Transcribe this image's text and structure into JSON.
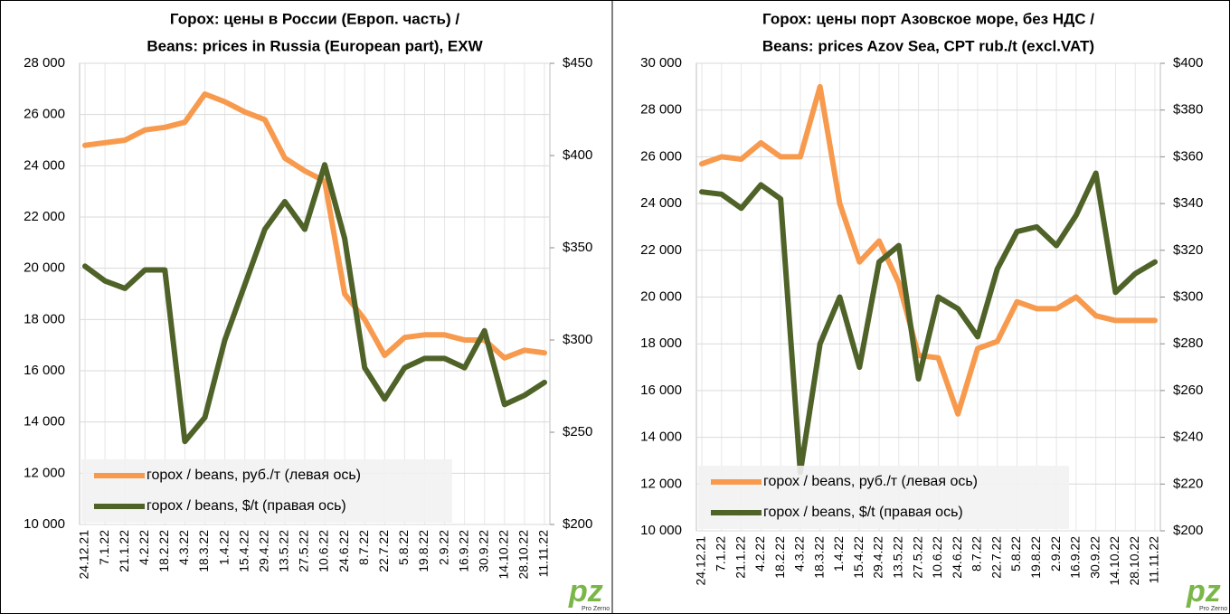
{
  "chart_data": [
    {
      "type": "line",
      "title": [
        "Горох: цены в России (Европ. часть) /",
        "Beans: prices in Russia (European part), EXW"
      ],
      "categories": [
        "24.12.21",
        "7.1.22",
        "21.1.22",
        "4.2.22",
        "18.2.22",
        "4.3.22",
        "18.3.22",
        "1.4.22",
        "15.4.22",
        "29.4.22",
        "13.5.22",
        "27.5.22",
        "10.6.22",
        "24.6.22",
        "8.7.22",
        "22.7.22",
        "5.8.22",
        "19.8.22",
        "2.9.22",
        "16.9.22",
        "30.9.22",
        "14.10.22",
        "28.10.22",
        "11.11.22"
      ],
      "series": [
        {
          "name": "горох / beans, руб./т (левая ось)",
          "color": "#f79a4e",
          "axis": "y",
          "values": [
            24800,
            24900,
            25000,
            25400,
            25500,
            25700,
            26800,
            26500,
            26100,
            25800,
            24300,
            23800,
            23400,
            19000,
            18000,
            16600,
            17300,
            17400,
            17400,
            17200,
            17200,
            16500,
            16800,
            16700
          ]
        },
        {
          "name": "горох / beans, $/t  (правая ось)",
          "color": "#4f6228",
          "axis": "y2",
          "values": [
            340,
            332,
            328,
            338,
            338,
            245,
            258,
            300,
            330,
            360,
            375,
            360,
            395,
            355,
            285,
            268,
            285,
            290,
            290,
            285,
            305,
            265,
            270,
            277
          ]
        }
      ],
      "ylim": [
        10000,
        28000
      ],
      "yticks": [
        {
          "value": 10000,
          "label": "10 000"
        },
        {
          "value": 12000,
          "label": "12 000"
        },
        {
          "value": 14000,
          "label": "14 000"
        },
        {
          "value": 16000,
          "label": "16 000"
        },
        {
          "value": 18000,
          "label": "18 000"
        },
        {
          "value": 20000,
          "label": "20 000"
        },
        {
          "value": 22000,
          "label": "22 000"
        },
        {
          "value": 24000,
          "label": "24 000"
        },
        {
          "value": 26000,
          "label": "26 000"
        },
        {
          "value": 28000,
          "label": "28 000"
        }
      ],
      "y2lim": [
        200,
        450
      ],
      "y2ticks": [
        {
          "value": 200,
          "label": "$200"
        },
        {
          "value": 250,
          "label": "$250"
        },
        {
          "value": 300,
          "label": "$300"
        },
        {
          "value": 350,
          "label": "$350"
        },
        {
          "value": 400,
          "label": "$400"
        },
        {
          "value": 450,
          "label": "$450"
        }
      ],
      "grid": true,
      "legend": "lower left",
      "logo": "pz",
      "logo_text": "Pro Zerno"
    },
    {
      "type": "line",
      "title": [
        "Горох: цены порт Азовское море, без НДС /",
        "Beans: prices Azov Sea, CPT rub./t (excl.VAT)"
      ],
      "categories": [
        "24.12.21",
        "7.1.22",
        "21.1.22",
        "4.2.22",
        "18.2.22",
        "4.3.22",
        "18.3.22",
        "1.4.22",
        "15.4.22",
        "29.4.22",
        "13.5.22",
        "27.5.22",
        "10.6.22",
        "24.6.22",
        "8.7.22",
        "22.7.22",
        "5.8.22",
        "19.8.22",
        "2.9.22",
        "16.9.22",
        "30.9.22",
        "14.10.22",
        "28.10.22",
        "11.11.22"
      ],
      "series": [
        {
          "name": "горох / beans, руб./т (левая ось)",
          "color": "#f79a4e",
          "axis": "y",
          "values": [
            25700,
            26000,
            25900,
            26600,
            26000,
            26000,
            29000,
            24000,
            21500,
            22400,
            20600,
            17500,
            17400,
            15000,
            17800,
            18100,
            19800,
            19500,
            19500,
            20000,
            19200,
            19000,
            19000,
            19000
          ]
        },
        {
          "name": "горох / beans, $/t (правая ось)",
          "color": "#4f6228",
          "axis": "y2",
          "values": [
            345,
            344,
            338,
            348,
            342,
            225,
            280,
            300,
            270,
            315,
            322,
            265,
            300,
            295,
            283,
            312,
            328,
            330,
            322,
            335,
            353,
            302,
            310,
            315
          ]
        }
      ],
      "ylim": [
        10000,
        30000
      ],
      "yticks": [
        {
          "value": 10000,
          "label": "10 000"
        },
        {
          "value": 12000,
          "label": "12 000"
        },
        {
          "value": 14000,
          "label": "14 000"
        },
        {
          "value": 16000,
          "label": "16 000"
        },
        {
          "value": 18000,
          "label": "18 000"
        },
        {
          "value": 20000,
          "label": "20 000"
        },
        {
          "value": 22000,
          "label": "22 000"
        },
        {
          "value": 24000,
          "label": "24 000"
        },
        {
          "value": 26000,
          "label": "26 000"
        },
        {
          "value": 28000,
          "label": "28 000"
        },
        {
          "value": 30000,
          "label": "30 000"
        }
      ],
      "y2lim": [
        200,
        400
      ],
      "y2ticks": [
        {
          "value": 200,
          "label": "$200"
        },
        {
          "value": 220,
          "label": "$220"
        },
        {
          "value": 240,
          "label": "$240"
        },
        {
          "value": 260,
          "label": "$260"
        },
        {
          "value": 280,
          "label": "$280"
        },
        {
          "value": 300,
          "label": "$300"
        },
        {
          "value": 320,
          "label": "$320"
        },
        {
          "value": 340,
          "label": "$340"
        },
        {
          "value": 360,
          "label": "$360"
        },
        {
          "value": 380,
          "label": "$380"
        },
        {
          "value": 400,
          "label": "$400"
        }
      ],
      "grid": true,
      "legend": "lower left",
      "logo": "pz",
      "logo_text": "Pro Zerno"
    }
  ]
}
